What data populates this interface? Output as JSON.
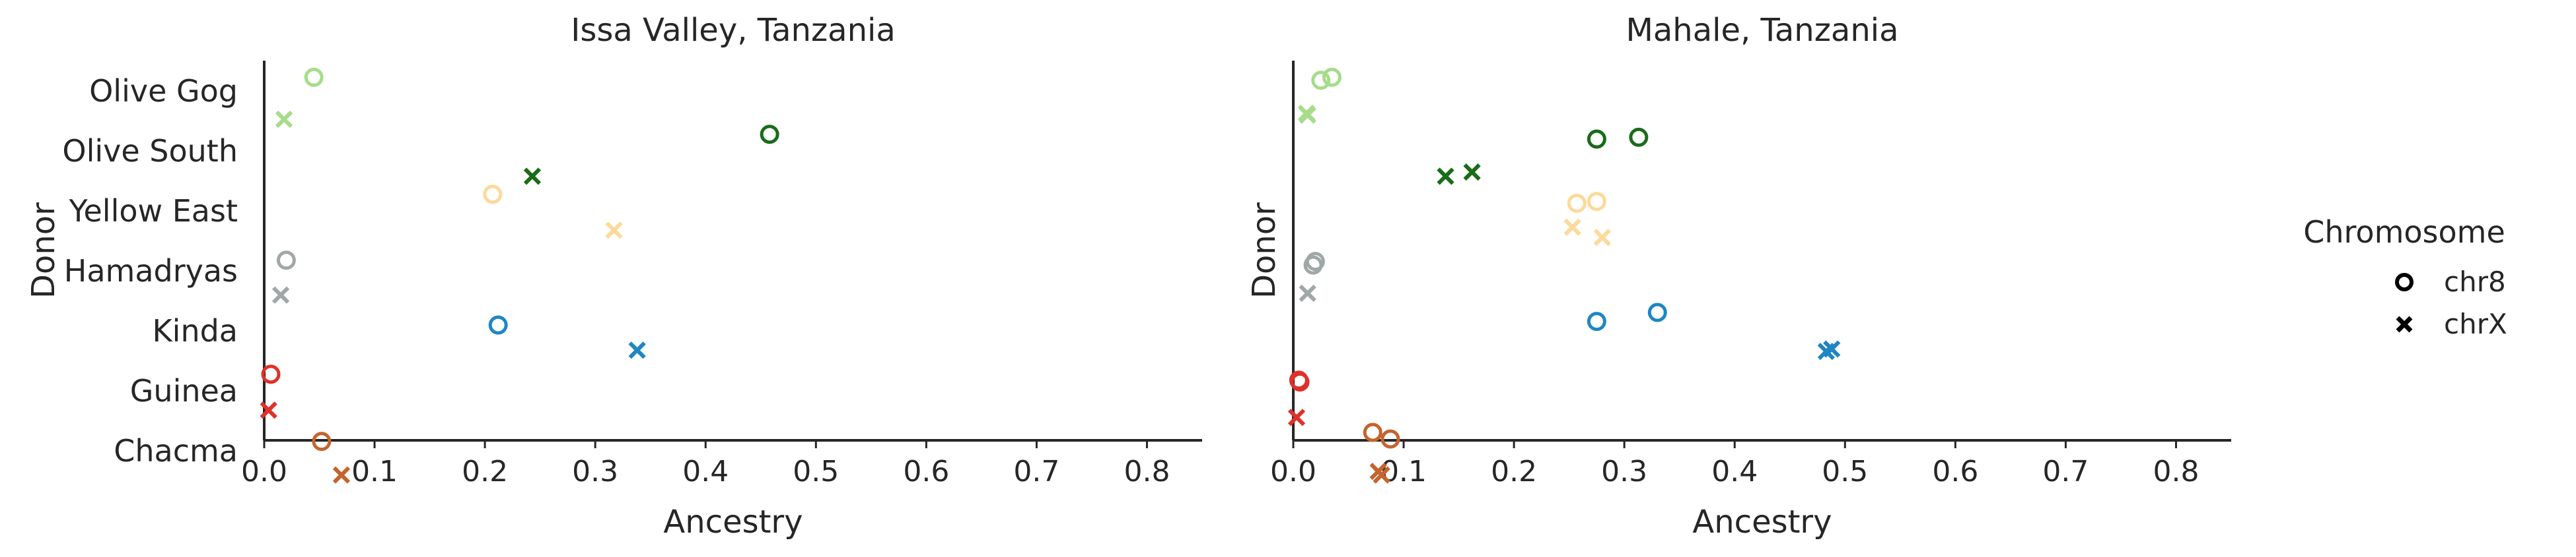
{
  "chart_data": [
    {
      "type": "scatter",
      "title": "Issa Valley, Tanzania",
      "xlabel": "Ancestry",
      "ylabel": "Donor",
      "xlim": [
        0.0,
        0.85
      ],
      "xticks": [
        "0.0",
        "0.1",
        "0.2",
        "0.3",
        "0.4",
        "0.5",
        "0.6",
        "0.7",
        "0.8"
      ],
      "categories": [
        "Olive Gog",
        "Olive South",
        "Yellow East",
        "Hamadryas",
        "Kinda",
        "Guinea",
        "Chacma"
      ],
      "grid": false,
      "series": [
        {
          "donor": "Olive Gog",
          "color": "#a6dc8a",
          "chr8": [
            {
              "x": 0.045,
              "offset": -0.25
            }
          ],
          "chrX": [
            {
              "x": 0.018,
              "offset": 0.45
            }
          ]
        },
        {
          "donor": "Olive South",
          "color": "#1a6b1a",
          "chr8": [
            {
              "x": 0.458,
              "offset": -0.3
            }
          ],
          "chrX": [
            {
              "x": 0.243,
              "offset": 0.4
            }
          ]
        },
        {
          "donor": "Yellow East",
          "color": "#fdd99b",
          "chr8": [
            {
              "x": 0.207,
              "offset": -0.3
            }
          ],
          "chrX": [
            {
              "x": 0.317,
              "offset": 0.3
            }
          ]
        },
        {
          "donor": "Hamadryas",
          "color": "#a0a7a7",
          "chr8": [
            {
              "x": 0.02,
              "offset": -0.2
            }
          ],
          "chrX": [
            {
              "x": 0.015,
              "offset": 0.38
            }
          ]
        },
        {
          "donor": "Kinda",
          "color": "#1f86c3",
          "chr8": [
            {
              "x": 0.212,
              "offset": -0.12
            }
          ],
          "chrX": [
            {
              "x": 0.338,
              "offset": 0.3
            }
          ]
        },
        {
          "donor": "Guinea",
          "color": "#e0302a",
          "chr8": [
            {
              "x": 0.006,
              "offset": -0.3
            }
          ],
          "chrX": [
            {
              "x": 0.004,
              "offset": 0.3
            }
          ]
        },
        {
          "donor": "Chacma",
          "color": "#c4642e",
          "chr8": [
            {
              "x": 0.052,
              "offset": -0.18
            }
          ],
          "chrX": [
            {
              "x": 0.07,
              "offset": 0.38
            }
          ]
        }
      ]
    },
    {
      "type": "scatter",
      "title": "Mahale, Tanzania",
      "xlabel": "Ancestry",
      "ylabel": "Donor",
      "xlim": [
        0.0,
        0.85
      ],
      "xticks": [
        "0.0",
        "0.1",
        "0.2",
        "0.3",
        "0.4",
        "0.5",
        "0.6",
        "0.7",
        "0.8"
      ],
      "categories": [
        "Olive Gog",
        "Olive South",
        "Yellow East",
        "Hamadryas",
        "Kinda",
        "Guinea",
        "Chacma"
      ],
      "show_category_labels": false,
      "grid": false,
      "series": [
        {
          "donor": "Olive Gog",
          "color": "#a6dc8a",
          "chr8": [
            {
              "x": 0.025,
              "offset": -0.2
            },
            {
              "x": 0.035,
              "offset": -0.25
            }
          ],
          "chrX": [
            {
              "x": 0.012,
              "offset": 0.35
            },
            {
              "x": 0.013,
              "offset": 0.38
            }
          ]
        },
        {
          "donor": "Olive South",
          "color": "#1a6b1a",
          "chr8": [
            {
              "x": 0.275,
              "offset": -0.22
            },
            {
              "x": 0.313,
              "offset": -0.25
            }
          ],
          "chrX": [
            {
              "x": 0.138,
              "offset": 0.4
            },
            {
              "x": 0.162,
              "offset": 0.33
            }
          ]
        },
        {
          "donor": "Yellow East",
          "color": "#fdd99b",
          "chr8": [
            {
              "x": 0.257,
              "offset": -0.15
            },
            {
              "x": 0.275,
              "offset": -0.18
            }
          ],
          "chrX": [
            {
              "x": 0.253,
              "offset": 0.25
            },
            {
              "x": 0.28,
              "offset": 0.42
            }
          ]
        },
        {
          "donor": "Hamadryas",
          "color": "#a0a7a7",
          "chr8": [
            {
              "x": 0.018,
              "offset": -0.12
            },
            {
              "x": 0.02,
              "offset": -0.18
            }
          ],
          "chrX": [
            {
              "x": 0.013,
              "offset": 0.35
            }
          ]
        },
        {
          "donor": "Kinda",
          "color": "#1f86c3",
          "chr8": [
            {
              "x": 0.275,
              "offset": -0.18
            },
            {
              "x": 0.33,
              "offset": -0.33
            }
          ],
          "chrX": [
            {
              "x": 0.483,
              "offset": 0.32
            },
            {
              "x": 0.488,
              "offset": 0.28
            }
          ]
        },
        {
          "donor": "Guinea",
          "color": "#e0302a",
          "chr8": [
            {
              "x": 0.005,
              "offset": -0.2
            },
            {
              "x": 0.006,
              "offset": -0.17
            }
          ],
          "chrX": [
            {
              "x": 0.003,
              "offset": 0.42
            }
          ]
        },
        {
          "donor": "Chacma",
          "color": "#c4642e",
          "chr8": [
            {
              "x": 0.072,
              "offset": -0.33
            },
            {
              "x": 0.088,
              "offset": -0.22
            }
          ],
          "chrX": [
            {
              "x": 0.077,
              "offset": 0.32
            },
            {
              "x": 0.08,
              "offset": 0.38
            }
          ]
        }
      ]
    }
  ],
  "legend": {
    "title": "Chromosome",
    "items": [
      {
        "label": "chr8",
        "marker": "circle"
      },
      {
        "label": "chrX",
        "marker": "x"
      }
    ],
    "placement": "right"
  }
}
